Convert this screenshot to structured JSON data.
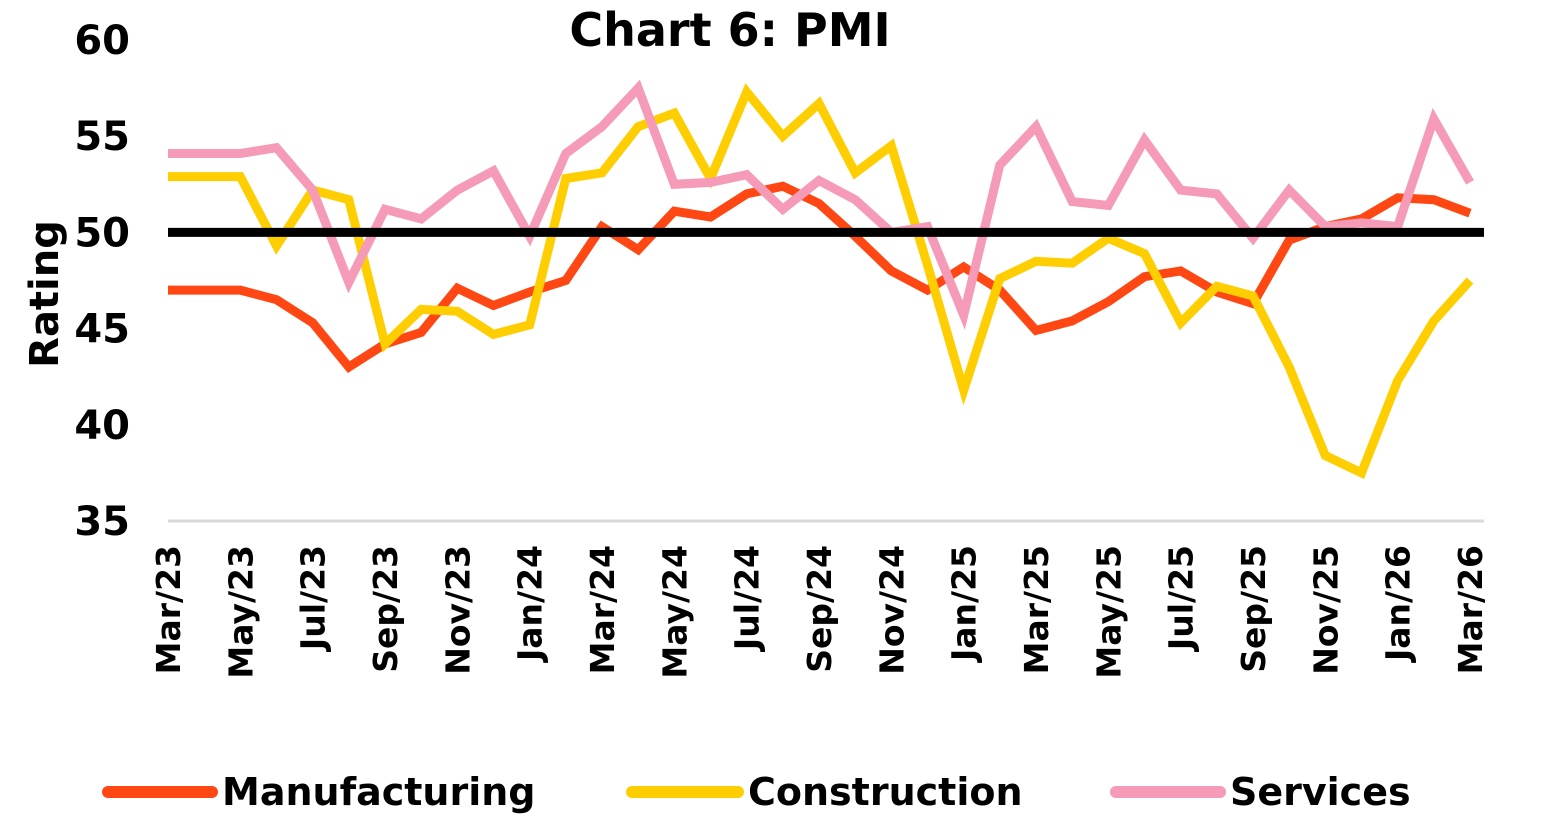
{
  "chart_data": {
    "type": "line",
    "title": "Chart 6: PMI",
    "ylabel": "Rating",
    "xlabel": "",
    "ylim": [
      35,
      60
    ],
    "yticks": [
      "35",
      "40",
      "45",
      "50",
      "55",
      "60"
    ],
    "reference_line": 50,
    "x": [
      "Mar/23",
      "Apr/23",
      "May/23",
      "Jun/23",
      "Jul/23",
      "Aug/23",
      "Sep/23",
      "Oct/23",
      "Nov/23",
      "Dec/23",
      "Jan/24",
      "Feb/24",
      "Mar/24",
      "Apr/24",
      "May/24",
      "Jun/24",
      "Jul/24",
      "Aug/24",
      "Sep/24",
      "Oct/24",
      "Nov/24",
      "Dec/24",
      "Jan/25",
      "Feb/25",
      "Mar/25",
      "Apr/25",
      "May/25",
      "Jun/25",
      "Jul/25",
      "Aug/25",
      "Sep/25",
      "Oct/25",
      "Nov/25",
      "Dec/25",
      "Jan/26",
      "Feb/26",
      "Mar/26"
    ],
    "xtick_labels": [
      "Mar/23",
      "May/23",
      "Jul/23",
      "Sep/23",
      "Nov/23",
      "Jan/24",
      "Mar/24",
      "May/24",
      "Jul/24",
      "Sep/24",
      "Nov/24",
      "Jan/25",
      "Mar/25",
      "May/25",
      "Jul/25",
      "Sep/25",
      "Nov/25",
      "Jan/26",
      "Mar/26"
    ],
    "series": [
      {
        "name": "Manufacturing",
        "color": "#ff4713",
        "values": [
          47.0,
          47.0,
          47.0,
          46.5,
          45.3,
          43.0,
          44.2,
          44.8,
          47.1,
          46.2,
          46.9,
          47.5,
          50.3,
          49.1,
          51.1,
          50.8,
          52.0,
          52.4,
          51.5,
          49.8,
          48.0,
          47.0,
          48.2,
          47.0,
          44.9,
          45.4,
          46.4,
          47.7,
          48.0,
          46.9,
          46.3,
          49.6,
          50.3,
          50.7,
          51.8,
          51.7,
          51.0
        ]
      },
      {
        "name": "Construction",
        "color": "#ffce00",
        "values": [
          52.9,
          52.9,
          52.9,
          49.3,
          52.2,
          51.7,
          44.2,
          46.0,
          45.9,
          44.7,
          45.2,
          52.8,
          53.1,
          55.5,
          56.2,
          52.8,
          57.3,
          55.0,
          56.7,
          53.1,
          54.5,
          48.3,
          41.8,
          47.6,
          48.5,
          48.4,
          49.7,
          48.9,
          45.3,
          47.2,
          46.7,
          43.0,
          38.4,
          37.5,
          42.3,
          45.4,
          47.5
        ]
      },
      {
        "name": "Services",
        "color": "#f59ab7",
        "values": [
          54.1,
          54.1,
          54.1,
          54.4,
          52.2,
          47.4,
          51.2,
          50.7,
          52.2,
          53.2,
          49.8,
          54.1,
          55.5,
          57.5,
          52.5,
          52.6,
          53.0,
          51.2,
          52.7,
          51.7,
          50.0,
          50.3,
          45.7,
          53.5,
          55.5,
          51.6,
          51.4,
          54.8,
          52.2,
          52.0,
          49.7,
          52.2,
          50.3,
          50.5,
          50.3,
          55.9,
          52.6
        ]
      }
    ],
    "legend_position": "bottom",
    "grid": false
  }
}
